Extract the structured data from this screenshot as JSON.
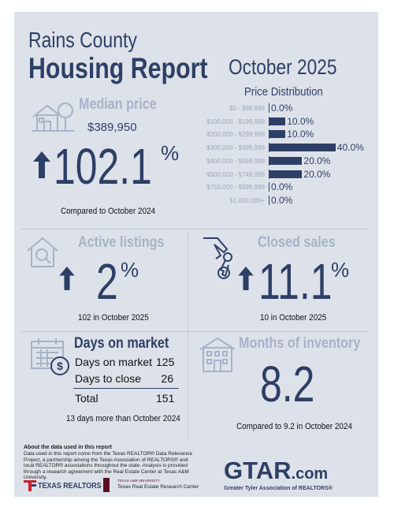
{
  "header": {
    "county": "Rains County",
    "report": "Housing Report",
    "month": "October 2025"
  },
  "median": {
    "label": "Median price",
    "price": "$389,950",
    "change": "102.1",
    "change_unit": "%",
    "note": "Compared to October 2024"
  },
  "distribution": {
    "title": "Price Distribution",
    "rows": [
      {
        "range": "$0 - $99,999",
        "value": "0.0%"
      },
      {
        "range": "$100,000 - $199,999",
        "value": "10.0%"
      },
      {
        "range": "$200,000 - $299,999",
        "value": "10.0%"
      },
      {
        "range": "$300,000 - $399,999",
        "value": "40.0%"
      },
      {
        "range": "$400,000 - $499,999",
        "value": "20.0%"
      },
      {
        "range": "$500,000 - $749,999",
        "value": "20.0%"
      },
      {
        "range": "$750,000 - $999,999",
        "value": "0.0%"
      },
      {
        "range": "$1,000,000+",
        "value": "0.0%"
      }
    ],
    "percents": [
      0,
      10,
      10,
      40,
      20,
      20,
      0,
      0
    ]
  },
  "active": {
    "label": "Active listings",
    "change": "2",
    "change_unit": "%",
    "note": "102 in October 2025"
  },
  "closed": {
    "label": "Closed sales",
    "change": "11.1",
    "change_unit": "%",
    "note": "10 in October 2025"
  },
  "dom": {
    "label": "Days on market",
    "rows": [
      {
        "name": "Days on market",
        "value": "125"
      },
      {
        "name": "Days to close",
        "value": "26"
      }
    ],
    "total_label": "Total",
    "total_value": "151",
    "note": "13 days more than October 2024"
  },
  "inventory": {
    "label": "Months of inventory",
    "value": "8.2",
    "note": "Compared to 9.2 in October 2024"
  },
  "footer": {
    "about_title": "About the data used in this report",
    "about_text": "Data used in this report come from the Texas REALTOR® Data Relevance Project, a partnership among the Texas Association of REALTORS® and local REALTOR® associations throughout the state. Analysis is provided through a research agreement with the Real Estate Center at Texas A&M University.",
    "texas_realtors": "TEXAS REALTORS",
    "tamu_small": "TEXAS A&M UNIVERSITY",
    "research_center": "Texas Real Estate Research Center",
    "gtar_logo": "GTAR",
    "gtar_suffix": ".com",
    "gtar_tagline": "Greater Tyler Association of REALTORS®"
  },
  "colors": {
    "navy": "#2e3f66",
    "muted": "#a6b3c8",
    "background": "#dde2ea",
    "accent_red": "#c8202f",
    "tamu_maroon": "#5a0f1e"
  }
}
